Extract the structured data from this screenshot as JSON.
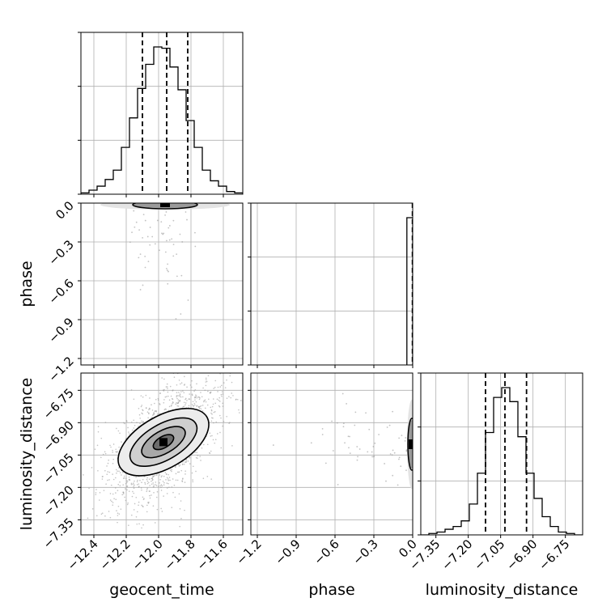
{
  "chart_data": {
    "type": "corner",
    "parameters": [
      "geocent_time",
      "phase",
      "luminosity_distance"
    ],
    "axis_labels": {
      "geocent_time": "geocent_time",
      "phase": "phase",
      "luminosity_distance": "luminosity_distance"
    },
    "ranges": {
      "geocent_time": [
        -12.48,
        -11.48
      ],
      "phase": [
        -1.25,
        0.0
      ],
      "luminosity_distance": [
        -7.42,
        -6.67
      ]
    },
    "ticks": {
      "geocent_time": [
        -12.4,
        -12.2,
        -12.0,
        -11.8,
        -11.6
      ],
      "phase": [
        -1.2,
        -0.9,
        -0.6,
        -0.3,
        0.0
      ],
      "luminosity_distance": [
        -7.35,
        -7.2,
        -7.05,
        -6.9,
        -6.75
      ]
    },
    "tick_labels": {
      "geocent_time": [
        "−12.4",
        "−12.2",
        "−12.0",
        "−11.8",
        "−11.6"
      ],
      "phase": [
        "−1.2",
        "−0.9",
        "−0.6",
        "−0.3",
        "0.0"
      ],
      "luminosity_distance": [
        "−7.35",
        "−7.20",
        "−7.05",
        "−6.90",
        "−6.75"
      ]
    },
    "marginals": {
      "geocent_time": {
        "bin_edges": [
          -12.48,
          -12.43,
          -12.38,
          -12.33,
          -12.28,
          -12.23,
          -12.18,
          -12.13,
          -12.08,
          -12.03,
          -11.98,
          -11.93,
          -11.88,
          -11.83,
          -11.78,
          -11.73,
          -11.68,
          -11.63,
          -11.58,
          -11.53,
          -11.48
        ],
        "counts": [
          1,
          3,
          6,
          11,
          18,
          35,
          57,
          79,
          97,
          110,
          109,
          95,
          78,
          55,
          35,
          18,
          10,
          6,
          2,
          1
        ],
        "quantiles": [
          -12.1,
          -11.95,
          -11.82
        ]
      },
      "phase": {
        "bin_edges": [
          -0.045,
          0.0
        ],
        "counts": [
          100
        ],
        "quantiles": [
          -0.002,
          0.0
        ]
      },
      "luminosity_distance": {
        "bin_edges": [
          -7.42,
          -7.3825,
          -7.345,
          -7.3075,
          -7.27,
          -7.2325,
          -7.195,
          -7.1575,
          -7.12,
          -7.0825,
          -7.045,
          -7.0075,
          -6.97,
          -6.9325,
          -6.895,
          -6.8575,
          -6.82,
          -6.7825,
          -6.745,
          -6.7075,
          -6.67
        ],
        "counts": [
          0,
          1,
          2,
          4,
          6,
          10,
          22,
          44,
          73,
          98,
          105,
          95,
          70,
          44,
          26,
          13,
          6,
          2,
          1,
          0
        ],
        "quantiles": [
          -7.12,
          -7.03,
          -6.93
        ]
      }
    },
    "joint": {
      "geocent_time|luminosity_distance": {
        "center": [
          -11.97,
          -6.99
        ],
        "sigma": [
          0.12,
          0.1
        ],
        "correlation": 0.55,
        "sample_count": 1500
      },
      "geocent_time|phase": {
        "note_free": true
      },
      "phase|luminosity_distance": {
        "phase_sigma": 0.015
      }
    },
    "grid": true,
    "contour_levels": [
      0.5,
      1.0,
      1.5,
      2.0
    ],
    "colors": {
      "line": "#000000",
      "quantile": "#000000",
      "grid": "#b0b0b0",
      "points": "#9a9a9a",
      "density_dark": "#000000"
    }
  }
}
